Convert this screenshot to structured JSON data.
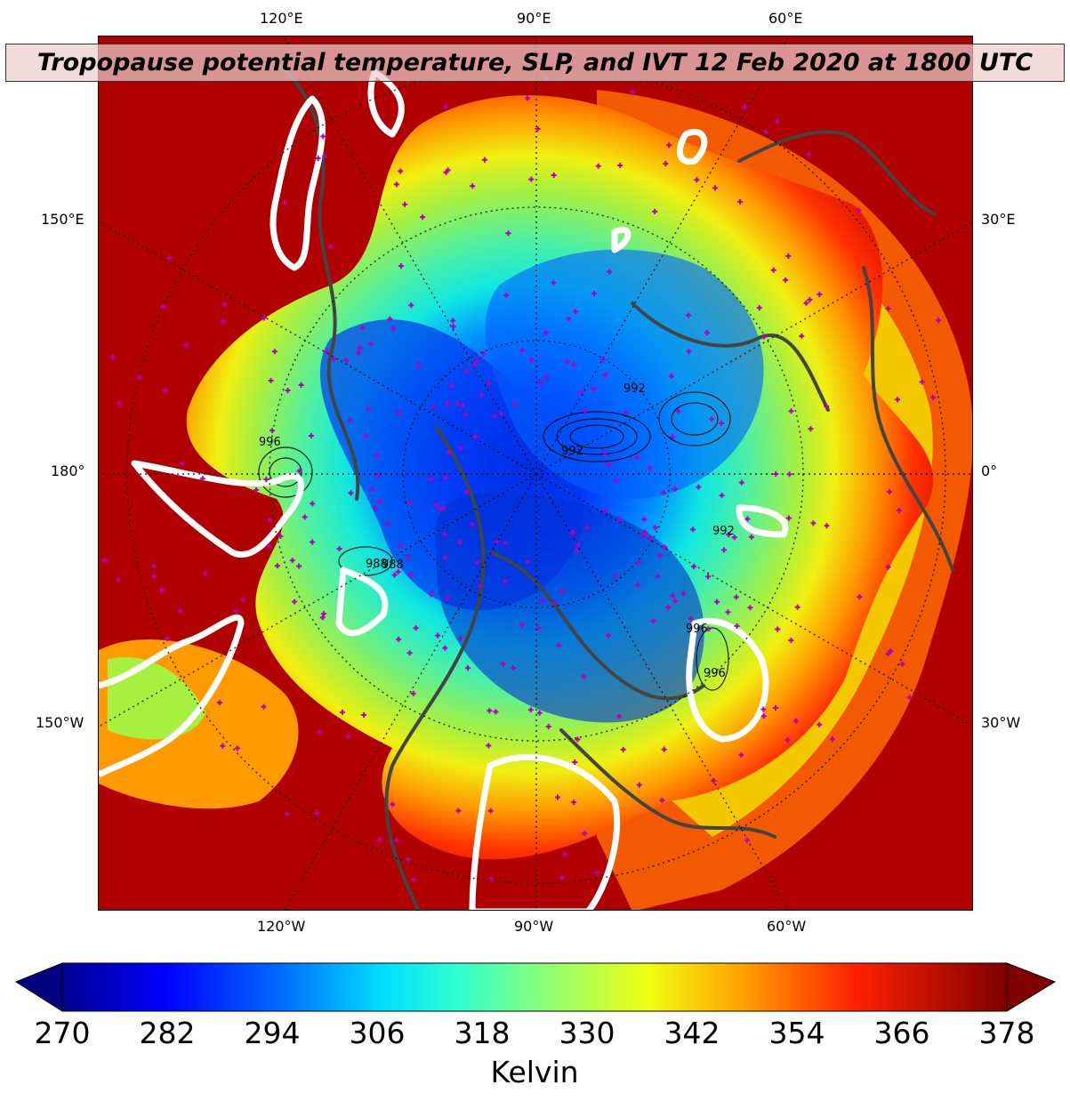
{
  "title": "Tropopause potential temperature, SLP, and IVT 12 Feb 2020 at 1800 UTC",
  "map": {
    "projection": "north-polar-stereographic",
    "field": "tropopause potential temperature",
    "overlays": [
      "sea-level-pressure-contours",
      "ivt-contours-white",
      "coastlines",
      "station-markers-magenta"
    ],
    "top_labels": [
      "120°E",
      "90°E",
      "60°E"
    ],
    "bottom_labels": [
      "120°W",
      "90°W",
      "60°W"
    ],
    "left_labels": [
      "150°E",
      "180°",
      "150°W"
    ],
    "right_labels": [
      "30°E",
      "0°",
      "30°W"
    ],
    "slp_labels": [
      "988",
      "988",
      "996",
      "992",
      "992",
      "992",
      "996",
      "996"
    ],
    "colors": {
      "coastline": "#444444",
      "ivt": "#ffffff",
      "station": "#b000c0"
    }
  },
  "colorbar": {
    "label": "Kelvin",
    "ticks": [
      "270",
      "282",
      "294",
      "306",
      "318",
      "330",
      "342",
      "354",
      "366",
      "378"
    ],
    "min": 270,
    "max": 378,
    "extend": "both",
    "colormap": "jet"
  }
}
